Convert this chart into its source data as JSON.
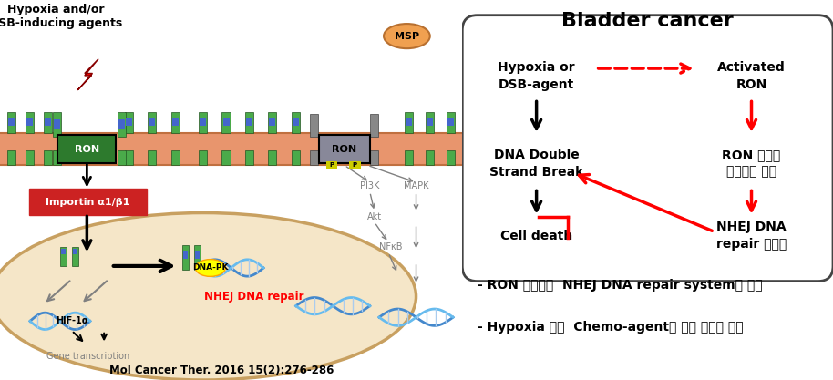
{
  "title": "Bladder cancer",
  "title_fontsize": 16,
  "title_fontweight": "bold",
  "bg_color": "#ffffff",
  "bullet1": "- RON 단백질이  NHEJ DNA repair system을 활성",
  "bullet2": "- Hypoxia 또는  Chemo-agent에 대한 저항성 발생",
  "bullet_fontsize": 10,
  "bullet_fontweight": "bold",
  "ref_text": "Mol Cancer Ther. 2016 15(2):276-286",
  "ref_fontsize": 9,
  "left_panel_label": "Hypoxia and/or\nDSB-inducing agents",
  "importin_label": "Importin α1/β1",
  "nhej_repair_label": "NHEJ DNA repair",
  "dnapk_label": "DNA-PK",
  "hif_label": "HIF-1α",
  "gene_label": "Gene transcription",
  "msp_label": "MSP",
  "pi3k_label": "PI3K",
  "mapk_label": "MAPK",
  "akt_label": "Akt",
  "nfkb_label": "NFκB",
  "ron_label": "RON",
  "node_hypoxia": "Hypoxia or\nDSB-agent",
  "node_activated_ron": "Activated\nRON",
  "node_dna_break": "DNA Double\nStrand Break",
  "node_ron_nuclear": "RON 단백질\n핵으로의 이동",
  "node_cell_death": "Cell death",
  "node_nhej": "NHEJ DNA\nrepair 활성화",
  "membrane_color": "#e8956d",
  "membrane_border": "#c07040",
  "cell_color": "#f5e6c8",
  "cell_border": "#c8a060",
  "ron_green": "#2d7a2d",
  "ron_gray": "#888899",
  "importin_color": "#cc2222",
  "msp_fill": "#f0a050",
  "msp_border": "#b87030"
}
